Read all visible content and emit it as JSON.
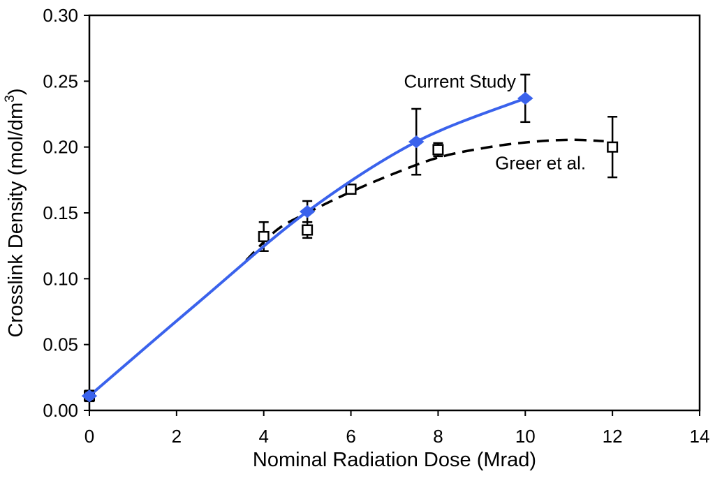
{
  "chart_data": {
    "type": "line",
    "title": "",
    "xlabel": "Nominal Radiation Dose (Mrad)",
    "ylabel": "Crosslink Density (mol/dm³)",
    "ylabel_parts": {
      "prefix": "Crosslink Density (mol/dm",
      "superscript": "3",
      "suffix": ")"
    },
    "xlim": [
      0,
      14
    ],
    "ylim": [
      0,
      0.3
    ],
    "xticks": [
      0,
      2,
      4,
      6,
      8,
      10,
      12,
      14
    ],
    "yticks": [
      "0.00",
      "0.05",
      "0.10",
      "0.15",
      "0.20",
      "0.25",
      "0.30"
    ],
    "grid": false,
    "legend": "inline-annotations",
    "colors": {
      "current_study": "#3a62ec",
      "greer": "#000000",
      "axis": "#000000",
      "background": "#ffffff"
    },
    "series": [
      {
        "name": "Current Study",
        "color": "#3a62ec",
        "line_style": "solid",
        "marker": "diamond-filled",
        "points": [
          {
            "x": 0,
            "y": 0.011,
            "err": 0.004
          },
          {
            "x": 5,
            "y": 0.151,
            "err": 0.008
          },
          {
            "x": 7.5,
            "y": 0.204,
            "err": 0.025
          },
          {
            "x": 10,
            "y": 0.237,
            "err": 0.018
          }
        ],
        "trend": [
          {
            "x": 0,
            "y": 0.011
          },
          {
            "x": 2.5,
            "y": 0.082
          },
          {
            "x": 5,
            "y": 0.151
          },
          {
            "x": 7.5,
            "y": 0.204
          },
          {
            "x": 10,
            "y": 0.237
          }
        ]
      },
      {
        "name": "Greer et al.",
        "color": "#000000",
        "line_style": "dashed",
        "marker": "square-open",
        "points": [
          {
            "x": 0,
            "y": 0.011,
            "err": 0.004
          },
          {
            "x": 4,
            "y": 0.132,
            "err": 0.011
          },
          {
            "x": 5,
            "y": 0.137,
            "err": 0.006
          },
          {
            "x": 6,
            "y": 0.168,
            "err": 0
          },
          {
            "x": 8,
            "y": 0.198,
            "err": 0.005
          },
          {
            "x": 12,
            "y": 0.2,
            "err": 0.023
          }
        ],
        "trend": [
          {
            "x": 3.6,
            "y": 0.114
          },
          {
            "x": 4.3,
            "y": 0.137
          },
          {
            "x": 5,
            "y": 0.15
          },
          {
            "x": 6,
            "y": 0.166
          },
          {
            "x": 7,
            "y": 0.18
          },
          {
            "x": 8,
            "y": 0.192
          },
          {
            "x": 9,
            "y": 0.199
          },
          {
            "x": 10,
            "y": 0.2035
          },
          {
            "x": 11,
            "y": 0.2055
          },
          {
            "x": 11.8,
            "y": 0.2045
          }
        ]
      }
    ],
    "annotations": [
      {
        "text": "Current Study",
        "x": 8.5,
        "y": 0.25,
        "series": "current_study"
      },
      {
        "text": "Greer et al.",
        "x": 10.35,
        "y": 0.188,
        "series": "greer"
      }
    ]
  }
}
